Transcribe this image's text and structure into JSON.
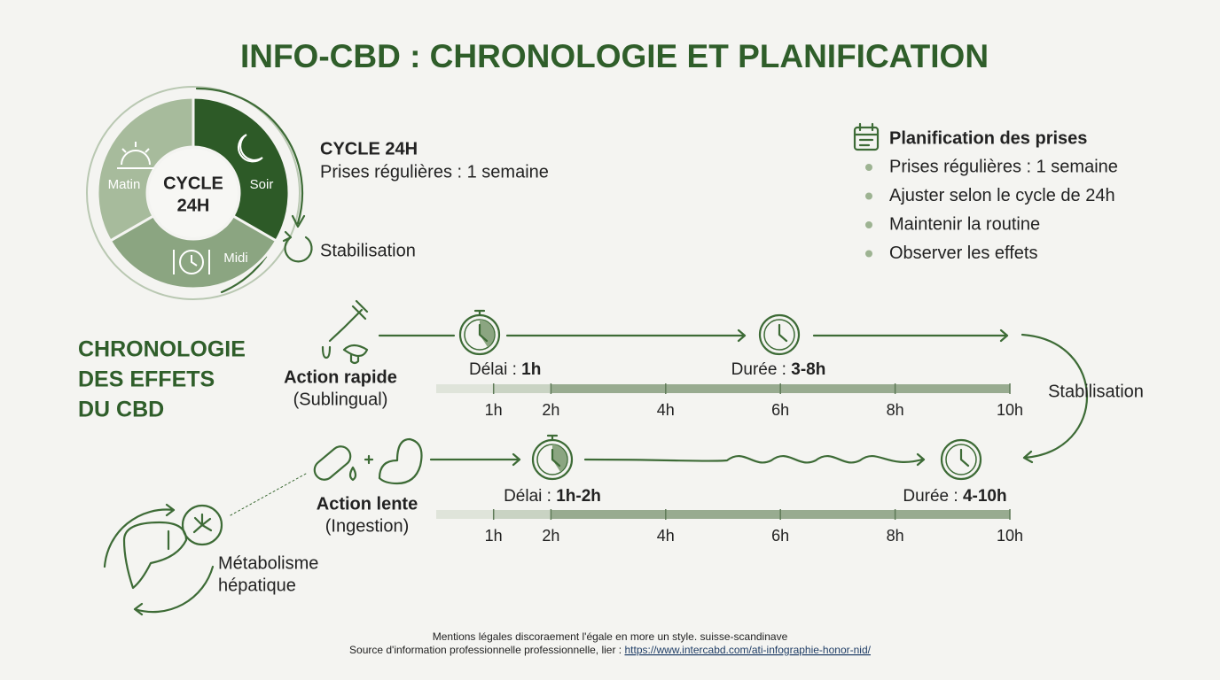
{
  "title": "INFO-CBD : CHRONOLOGIE ET PLANIFICATION",
  "cycle": {
    "center": [
      "CYCLE",
      "24H"
    ],
    "segments": [
      "Matin",
      "Soir",
      "Midi"
    ],
    "heading": "CYCLE 24H",
    "subheading": "Prises régulières : 1 semaine",
    "stabilisation": "Stabilisation"
  },
  "planning": {
    "title": "Planification des prises",
    "items": [
      "Prises régulières : 1 semaine",
      "Ajuster selon le cycle de 24h",
      "Maintenir la routine",
      "Observer les effets"
    ]
  },
  "chronology": {
    "title": [
      "CHRONOLOGIE",
      "DES EFFETS",
      "DU CBD"
    ],
    "fast": {
      "label": "Action rapide",
      "route": "(Sublingual)",
      "delay_label": "Délai :",
      "delay": "1h",
      "duration_label": "Durée :",
      "duration": "3-8h"
    },
    "slow": {
      "label": "Action lente",
      "route": "(Ingestion)",
      "delay_label": "Délai :",
      "delay": "1h-2h",
      "duration_label": "Durée :",
      "duration": "4-10h"
    },
    "stabilisation": "Stabilisation",
    "ticks": [
      {
        "value": 1,
        "label": "1h"
      },
      {
        "value": 2,
        "label": "2h"
      },
      {
        "value": 4,
        "label": "4h"
      },
      {
        "value": 6,
        "label": "6h"
      },
      {
        "value": 8,
        "label": "8h"
      },
      {
        "value": 10,
        "label": "10h"
      }
    ]
  },
  "metabolism": [
    "Métabolisme",
    "hépatique"
  ],
  "footer": {
    "line1": "Mentions légales discoraement l'égale en more un style. suisse-scandinave",
    "line2": "Source d'information professionnelle professionnelle, lier :",
    "link": "https://www.intercabd.com/ati-infographie-honor-nid/"
  }
}
